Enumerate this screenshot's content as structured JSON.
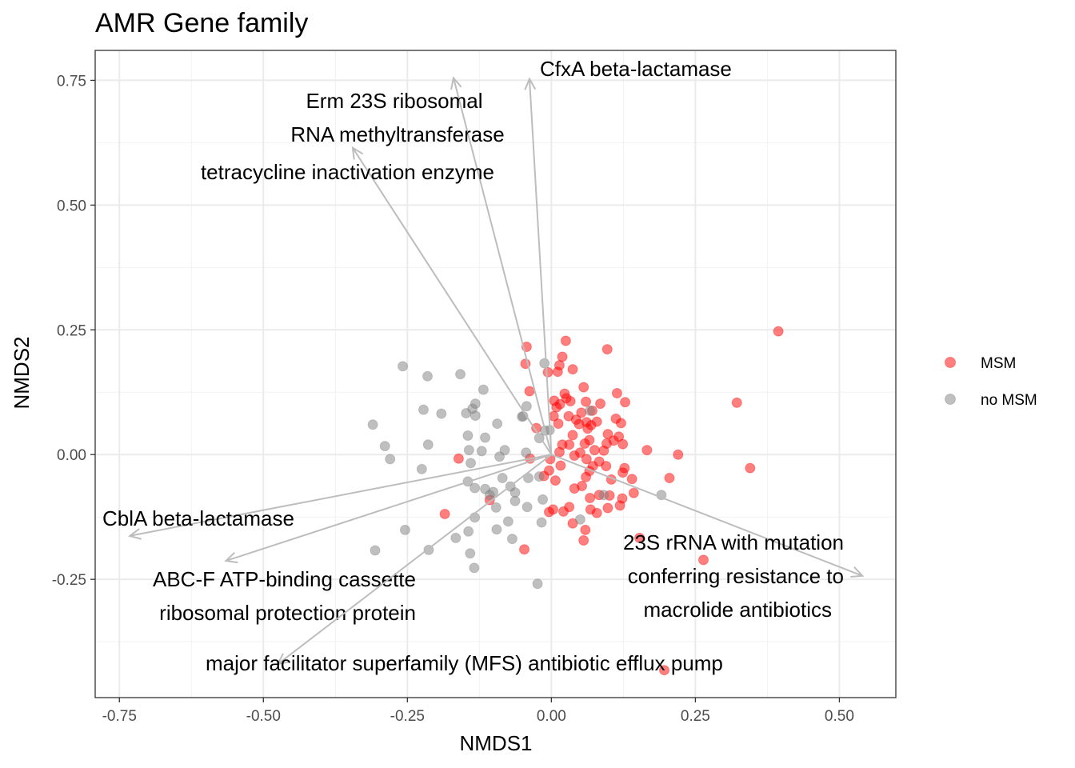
{
  "chart_data": {
    "type": "scatter",
    "title": "AMR Gene family",
    "xlabel": "NMDS1",
    "ylabel": "NMDS2",
    "xlim": [
      -0.792,
      0.598
    ],
    "ylim": [
      -0.487,
      0.81
    ],
    "x_ticks": [
      -0.75,
      -0.5,
      -0.25,
      0.0,
      0.25,
      0.5
    ],
    "x_tick_labels": [
      "-0.75",
      "-0.50",
      "-0.25",
      "0.00",
      "0.25",
      "0.50"
    ],
    "y_ticks": [
      -0.25,
      0.0,
      0.25,
      0.5,
      0.75
    ],
    "y_tick_labels": [
      "-0.25",
      "0.00",
      "0.25",
      "0.50",
      "0.75"
    ],
    "grid": true,
    "legend_position": "right",
    "series": [
      {
        "name": "MSM",
        "color": "#ff0000",
        "points": [
          [
            0.394,
            0.247
          ],
          [
            0.322,
            0.104
          ],
          [
            0.345,
            -0.027
          ],
          [
            0.22,
            0.0
          ],
          [
            0.205,
            -0.047
          ],
          [
            0.264,
            -0.211
          ],
          [
            0.196,
            -0.432
          ],
          [
            0.166,
            0.009
          ],
          [
            0.153,
            -0.167
          ],
          [
            0.123,
            -0.088
          ],
          [
            0.143,
            -0.077
          ],
          [
            0.14,
            -0.049
          ],
          [
            0.127,
            -0.027
          ],
          [
            0.097,
            0.211
          ],
          [
            0.114,
            0.123
          ],
          [
            0.128,
            0.105
          ],
          [
            0.112,
            0.072
          ],
          [
            0.121,
            0.063
          ],
          [
            0.117,
            0.036
          ],
          [
            0.108,
            0.028
          ],
          [
            0.124,
            0.021
          ],
          [
            0.098,
            0.041
          ],
          [
            0.096,
            0.022
          ],
          [
            0.091,
            0.008
          ],
          [
            0.085,
            0.102
          ],
          [
            0.069,
            0.059
          ],
          [
            0.061,
            0.065
          ],
          [
            0.079,
            0.066
          ],
          [
            0.052,
            0.084
          ],
          [
            0.071,
            0.088
          ],
          [
            0.056,
            0.135
          ],
          [
            0.06,
            0.106
          ],
          [
            0.033,
            0.107
          ],
          [
            0.03,
            0.077
          ],
          [
            0.043,
            0.07
          ],
          [
            0.048,
            0.061
          ],
          [
            0.037,
            0.039
          ],
          [
            0.031,
            0.02
          ],
          [
            0.063,
            0.052
          ],
          [
            0.058,
            0.022
          ],
          [
            0.066,
            0.029
          ],
          [
            0.075,
            0.009
          ],
          [
            0.05,
            0.004
          ],
          [
            0.04,
            -0.002
          ],
          [
            0.061,
            -0.009
          ],
          [
            0.072,
            -0.023
          ],
          [
            0.066,
            -0.033
          ],
          [
            0.06,
            -0.045
          ],
          [
            0.04,
            -0.068
          ],
          [
            0.053,
            -0.063
          ],
          [
            0.067,
            -0.087
          ],
          [
            0.083,
            -0.081
          ],
          [
            0.079,
            -0.117
          ],
          [
            0.068,
            -0.11
          ],
          [
            0.098,
            -0.107
          ],
          [
            0.119,
            -0.102
          ],
          [
            0.101,
            -0.082
          ],
          [
            0.104,
            -0.05
          ],
          [
            0.124,
            -0.036
          ],
          [
            0.095,
            -0.023
          ],
          [
            0.083,
            -0.014
          ],
          [
            0.059,
            -0.151
          ],
          [
            0.056,
            -0.172
          ],
          [
            0.037,
            -0.138
          ],
          [
            0.031,
            -0.105
          ],
          [
            0.003,
            -0.11
          ],
          [
            0.021,
            -0.114
          ],
          [
            -0.004,
            -0.115
          ],
          [
            0.007,
            -0.052
          ],
          [
            -0.013,
            -0.043
          ],
          [
            0.016,
            -0.022
          ],
          [
            -0.004,
            -0.032
          ],
          [
            -0.002,
            -0.009
          ],
          [
            0.014,
            0.005
          ],
          [
            0.019,
            0.02
          ],
          [
            -0.026,
            0.053
          ],
          [
            -0.038,
            0.127
          ],
          [
            0.012,
            0.062
          ],
          [
            0.004,
            0.077
          ],
          [
            0.009,
            0.095
          ],
          [
            0.015,
            0.101
          ],
          [
            0.023,
            0.122
          ],
          [
            0.026,
            0.113
          ],
          [
            0.005,
            0.108
          ],
          [
            -0.006,
            0.165
          ],
          [
            0.011,
            0.166
          ],
          [
            0.014,
            0.179
          ],
          [
            0.037,
            0.171
          ],
          [
            0.019,
            0.196
          ],
          [
            0.025,
            0.228
          ],
          [
            -0.043,
            0.216
          ],
          [
            -0.045,
            0.182
          ],
          [
            -0.037,
            -0.008
          ],
          [
            -0.047,
            -0.19
          ],
          [
            -0.161,
            -0.008
          ],
          [
            -0.185,
            -0.119
          ],
          [
            -0.107,
            -0.091
          ]
        ]
      },
      {
        "name": "no MSM",
        "color": "#808080",
        "points": [
          [
            -0.258,
            0.177
          ],
          [
            -0.215,
            0.157
          ],
          [
            -0.158,
            0.161
          ],
          [
            -0.118,
            0.13
          ],
          [
            -0.132,
            0.102
          ],
          [
            -0.137,
            0.092
          ],
          [
            -0.132,
            0.078
          ],
          [
            -0.148,
            0.083
          ],
          [
            -0.222,
            0.09
          ],
          [
            -0.191,
            0.082
          ],
          [
            -0.31,
            0.06
          ],
          [
            -0.289,
            0.017
          ],
          [
            -0.28,
            -0.009
          ],
          [
            -0.214,
            0.02
          ],
          [
            -0.225,
            -0.029
          ],
          [
            -0.115,
            0.034
          ],
          [
            -0.121,
            0.007
          ],
          [
            -0.145,
            0.038
          ],
          [
            -0.143,
            0.009
          ],
          [
            -0.094,
            0.062
          ],
          [
            -0.081,
            0.009
          ],
          [
            -0.09,
            -0.004
          ],
          [
            -0.14,
            -0.017
          ],
          [
            -0.145,
            -0.054
          ],
          [
            -0.133,
            -0.067
          ],
          [
            -0.115,
            -0.069
          ],
          [
            -0.107,
            -0.081
          ],
          [
            -0.101,
            -0.075
          ],
          [
            -0.085,
            -0.047
          ],
          [
            -0.071,
            -0.064
          ],
          [
            -0.063,
            -0.076
          ],
          [
            -0.063,
            -0.093
          ],
          [
            -0.096,
            -0.106
          ],
          [
            -0.075,
            -0.134
          ],
          [
            -0.095,
            -0.15
          ],
          [
            -0.068,
            -0.169
          ],
          [
            -0.042,
            -0.105
          ],
          [
            -0.017,
            -0.136
          ],
          [
            -0.015,
            -0.09
          ],
          [
            -0.04,
            -0.047
          ],
          [
            -0.021,
            -0.044
          ],
          [
            -0.044,
            0.004
          ],
          [
            -0.021,
            0.033
          ],
          [
            -0.049,
            0.077
          ],
          [
            -0.051,
            0.076
          ],
          [
            -0.043,
            0.097
          ],
          [
            -0.133,
            -0.126
          ],
          [
            -0.144,
            -0.154
          ],
          [
            -0.213,
            -0.191
          ],
          [
            -0.254,
            -0.151
          ],
          [
            -0.166,
            -0.167
          ],
          [
            -0.134,
            -0.227
          ],
          [
            -0.141,
            -0.198
          ],
          [
            -0.306,
            -0.192
          ],
          [
            -0.024,
            -0.259
          ],
          [
            -0.012,
            0.183
          ],
          [
            -0.011,
            0.048
          ],
          [
            -0.003,
            0.049
          ],
          [
            0.05,
            -0.13
          ],
          [
            0.091,
            -0.081
          ],
          [
            0.191,
            -0.081
          ],
          [
            0.067,
            0.088
          ]
        ]
      }
    ],
    "vectors": [
      {
        "label_lines": [
          "CfxA beta-lactamase"
        ],
        "x": -0.038,
        "y": 0.753
      },
      {
        "label_lines": [
          "Erm 23S ribosomal",
          "RNA methyltransferase"
        ],
        "x": -0.17,
        "y": 0.755
      },
      {
        "label_lines": [
          "tetracycline inactivation enzyme"
        ],
        "x": -0.345,
        "y": 0.615
      },
      {
        "label_lines": [
          "CblA beta-lactamase"
        ],
        "x": -0.732,
        "y": -0.163
      },
      {
        "label_lines": [
          "ABC-F ATP-binding cassette",
          "ribosomal protection protein"
        ],
        "x": -0.565,
        "y": -0.213
      },
      {
        "label_lines": [
          "23S rRNA with mutation",
          "conferring resistance to",
          "macrolide antibiotics"
        ],
        "x": 0.54,
        "y": -0.243
      },
      {
        "label_lines": [
          "major facilitator superfamily (MFS) antibiotic efflux pump"
        ],
        "x": -0.475,
        "y": -0.42
      }
    ]
  }
}
